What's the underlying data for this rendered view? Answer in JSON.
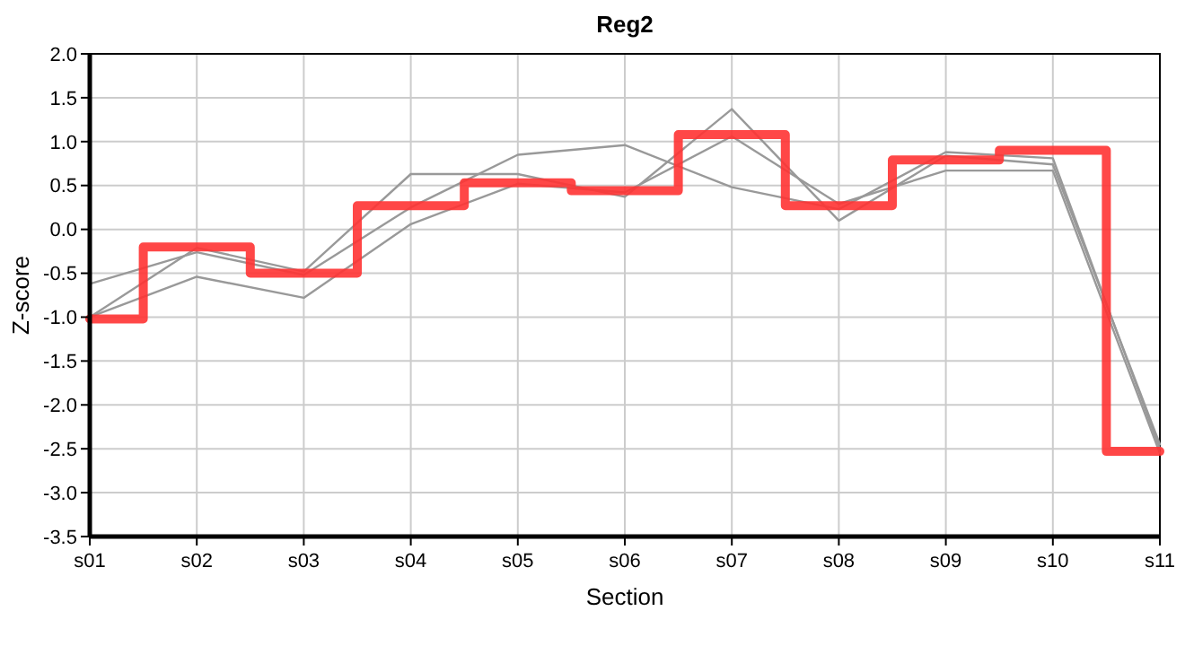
{
  "chart_data": {
    "type": "line",
    "title": "Reg2",
    "xlabel": "Section",
    "ylabel": "Z-score",
    "categories": [
      "s01",
      "s02",
      "s03",
      "s04",
      "s05",
      "s06",
      "s07",
      "s08",
      "s09",
      "s10",
      "s11"
    ],
    "ylim": [
      -3.5,
      2.0
    ],
    "yticks": [
      {
        "value": -3.5,
        "label": "-3.5"
      },
      {
        "value": -3,
        "label": "-3.0"
      },
      {
        "value": -2.5,
        "label": "-2.5"
      },
      {
        "value": -2,
        "label": "-2.0"
      },
      {
        "value": -1.5,
        "label": "-1.5"
      },
      {
        "value": -1,
        "label": "-1.0"
      },
      {
        "value": -0.5,
        "label": "-0.5"
      },
      {
        "value": 0,
        "label": "0.0"
      },
      {
        "value": 0.5,
        "label": "0.5"
      },
      {
        "value": 1,
        "label": "1.0"
      },
      {
        "value": 1.5,
        "label": "1.5"
      },
      {
        "value": 2,
        "label": "2.0"
      }
    ],
    "grid": true,
    "marker": "none",
    "series": [
      {
        "color": "#999999",
        "values": [
          -0.62,
          -0.26,
          -0.52,
          0.25,
          0.85,
          0.96,
          0.48,
          0.23,
          0.88,
          0.81,
          -2.5
        ]
      },
      {
        "color": "#999999",
        "values": [
          -1.0,
          -0.21,
          -0.48,
          0.63,
          0.63,
          0.37,
          1.37,
          0.1,
          0.84,
          0.74,
          -2.45
        ]
      },
      {
        "color": "#999999",
        "values": [
          -1.0,
          -0.54,
          -0.78,
          0.06,
          0.52,
          0.42,
          1.06,
          0.29,
          0.67,
          0.67,
          -2.55
        ]
      },
      {
        "type": "step",
        "color": "#ff3333",
        "values": [
          -1.02,
          -0.2,
          -0.5,
          0.27,
          0.53,
          0.44,
          1.08,
          0.27,
          0.79,
          0.9,
          -2.53
        ]
      }
    ]
  }
}
